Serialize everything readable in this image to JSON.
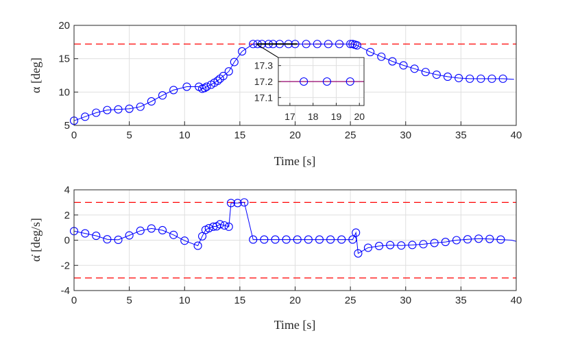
{
  "colors": {
    "series": "#0000ff",
    "limit": "#ff0000",
    "axis": "#262626",
    "grid": "#dfdfdf",
    "leader": "#000000"
  },
  "chart_data": [
    {
      "type": "line",
      "id": "alpha",
      "title": "",
      "xlabel": "Time [s]",
      "ylabel": "α [deg]",
      "xlim": [
        0,
        40
      ],
      "ylim": [
        5,
        20
      ],
      "xticks": [
        "0",
        "5",
        "10",
        "15",
        "20",
        "25",
        "30",
        "35",
        "40"
      ],
      "yticks": [
        "5",
        "10",
        "15",
        "20"
      ],
      "grid": true,
      "limits": [
        {
          "name": "upper limit",
          "value": 17.2
        }
      ],
      "series": [
        {
          "name": "alpha",
          "marker": "circle",
          "x": [
            0,
            1,
            2,
            3,
            4,
            5,
            6,
            7,
            8,
            9,
            10.2,
            11.3,
            11.6,
            11.8,
            12,
            12.4,
            12.7,
            13,
            13.2,
            13.5,
            14,
            14.5,
            15.2,
            16.2,
            16.6,
            17,
            17.6,
            18,
            18.6,
            19.4,
            20,
            21,
            22,
            23,
            24,
            25,
            25.2,
            25.4,
            25.6,
            26.8,
            27.8,
            28.8,
            29.8,
            30.8,
            31.8,
            32.8,
            33.8,
            34.8,
            35.8,
            36.8,
            37.8,
            38.8,
            39.8
          ],
          "y": [
            5.7,
            6.3,
            6.9,
            7.3,
            7.4,
            7.5,
            7.8,
            8.6,
            9.5,
            10.3,
            10.8,
            10.8,
            10.5,
            10.6,
            10.8,
            11.1,
            11.4,
            11.7,
            12.0,
            12.4,
            13.1,
            14.5,
            16.1,
            17.2,
            17.2,
            17.2,
            17.2,
            17.2,
            17.2,
            17.2,
            17.2,
            17.2,
            17.2,
            17.2,
            17.2,
            17.2,
            17.2,
            17.1,
            17.0,
            16.0,
            15.3,
            14.6,
            14.0,
            13.5,
            13.0,
            12.6,
            12.3,
            12.1,
            12.0,
            12.0,
            12.0,
            12.0,
            11.9
          ]
        }
      ],
      "inset": {
        "xlim": [
          16.5,
          20.2
        ],
        "ylim": [
          17.05,
          17.35
        ],
        "xticks": [
          "17",
          "18",
          "19",
          "20"
        ],
        "yticks": [
          "17.1",
          "17.2",
          "17.3"
        ],
        "points_x": [
          17.6,
          18.6,
          19.6
        ],
        "points_y": [
          17.2,
          17.2,
          17.2
        ],
        "limit": 17.2
      }
    },
    {
      "type": "line",
      "id": "alpha_dot",
      "title": "",
      "xlabel": "Time [s]",
      "ylabel": "α̇ [deg/s]",
      "xlim": [
        0,
        40
      ],
      "ylim": [
        -4,
        4
      ],
      "xticks": [
        "0",
        "5",
        "10",
        "15",
        "20",
        "25",
        "30",
        "35",
        "40"
      ],
      "yticks": [
        "-4",
        "-2",
        "0",
        "2",
        "4"
      ],
      "grid": true,
      "limits": [
        {
          "name": "upper limit",
          "value": 3
        },
        {
          "name": "lower limit",
          "value": -3
        }
      ],
      "series": [
        {
          "name": "alpha_dot",
          "marker": "circle",
          "x": [
            0,
            1,
            2,
            3,
            4,
            5,
            6,
            7,
            8,
            9,
            10,
            11.2,
            11.6,
            11.9,
            12.2,
            12.6,
            12.9,
            13.2,
            13.6,
            14,
            14.2,
            14.8,
            15.4,
            16.2,
            17.2,
            18.2,
            19.2,
            20.2,
            21.2,
            22.2,
            23.2,
            24.2,
            25.2,
            25.5,
            25.7,
            26.6,
            27.6,
            28.6,
            29.6,
            30.6,
            31.6,
            32.6,
            33.6,
            34.6,
            35.6,
            36.6,
            37.6,
            38.6,
            39.6,
            40
          ],
          "y": [
            0.72,
            0.54,
            0.35,
            0.07,
            0.03,
            0.38,
            0.75,
            0.93,
            0.79,
            0.42,
            -0.04,
            -0.44,
            0.31,
            0.82,
            0.95,
            1.07,
            1.1,
            1.26,
            1.17,
            1.07,
            2.95,
            2.95,
            3.0,
            0.05,
            0.05,
            0.05,
            0.05,
            0.05,
            0.05,
            0.05,
            0.05,
            0.05,
            0.05,
            0.6,
            -1.05,
            -0.6,
            -0.46,
            -0.39,
            -0.42,
            -0.38,
            -0.32,
            -0.22,
            -0.14,
            0.0,
            0.07,
            0.12,
            0.1,
            0.05,
            0.0,
            -0.1
          ]
        }
      ]
    }
  ]
}
